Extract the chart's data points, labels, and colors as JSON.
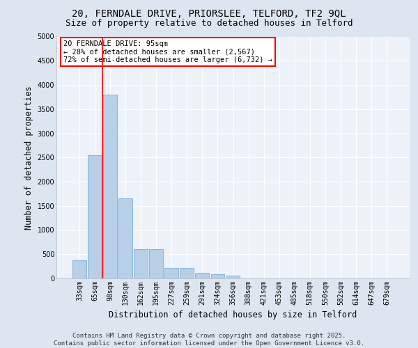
{
  "title_line1": "20, FERNDALE DRIVE, PRIORSLEE, TELFORD, TF2 9QL",
  "title_line2": "Size of property relative to detached houses in Telford",
  "xlabel": "Distribution of detached houses by size in Telford",
  "ylabel": "Number of detached properties",
  "categories": [
    "33sqm",
    "65sqm",
    "98sqm",
    "130sqm",
    "162sqm",
    "195sqm",
    "227sqm",
    "259sqm",
    "291sqm",
    "324sqm",
    "356sqm",
    "388sqm",
    "421sqm",
    "453sqm",
    "485sqm",
    "518sqm",
    "550sqm",
    "582sqm",
    "614sqm",
    "647sqm",
    "679sqm"
  ],
  "values": [
    380,
    2550,
    3800,
    1650,
    600,
    600,
    220,
    220,
    110,
    80,
    60,
    0,
    0,
    0,
    0,
    0,
    0,
    0,
    0,
    0,
    0
  ],
  "bar_color": "#b8cfe8",
  "bar_edge_color": "#7aaed4",
  "vline_x": 1.5,
  "vline_color": "red",
  "annotation_text": "20 FERNDALE DRIVE: 95sqm\n← 28% of detached houses are smaller (2,567)\n72% of semi-detached houses are larger (6,732) →",
  "annotation_box_color": "red",
  "ylim": [
    0,
    5000
  ],
  "yticks": [
    0,
    500,
    1000,
    1500,
    2000,
    2500,
    3000,
    3500,
    4000,
    4500,
    5000
  ],
  "background_color": "#dde6f0",
  "plot_bg_color": "#edf1f8",
  "grid_color": "#ffffff",
  "footer_text": "Contains HM Land Registry data © Crown copyright and database right 2025.\nContains public sector information licensed under the Open Government Licence v3.0.",
  "title_fontsize": 10,
  "subtitle_fontsize": 9,
  "axis_label_fontsize": 8.5,
  "tick_fontsize": 7,
  "footer_fontsize": 6.5,
  "annotation_fontsize": 7.5
}
